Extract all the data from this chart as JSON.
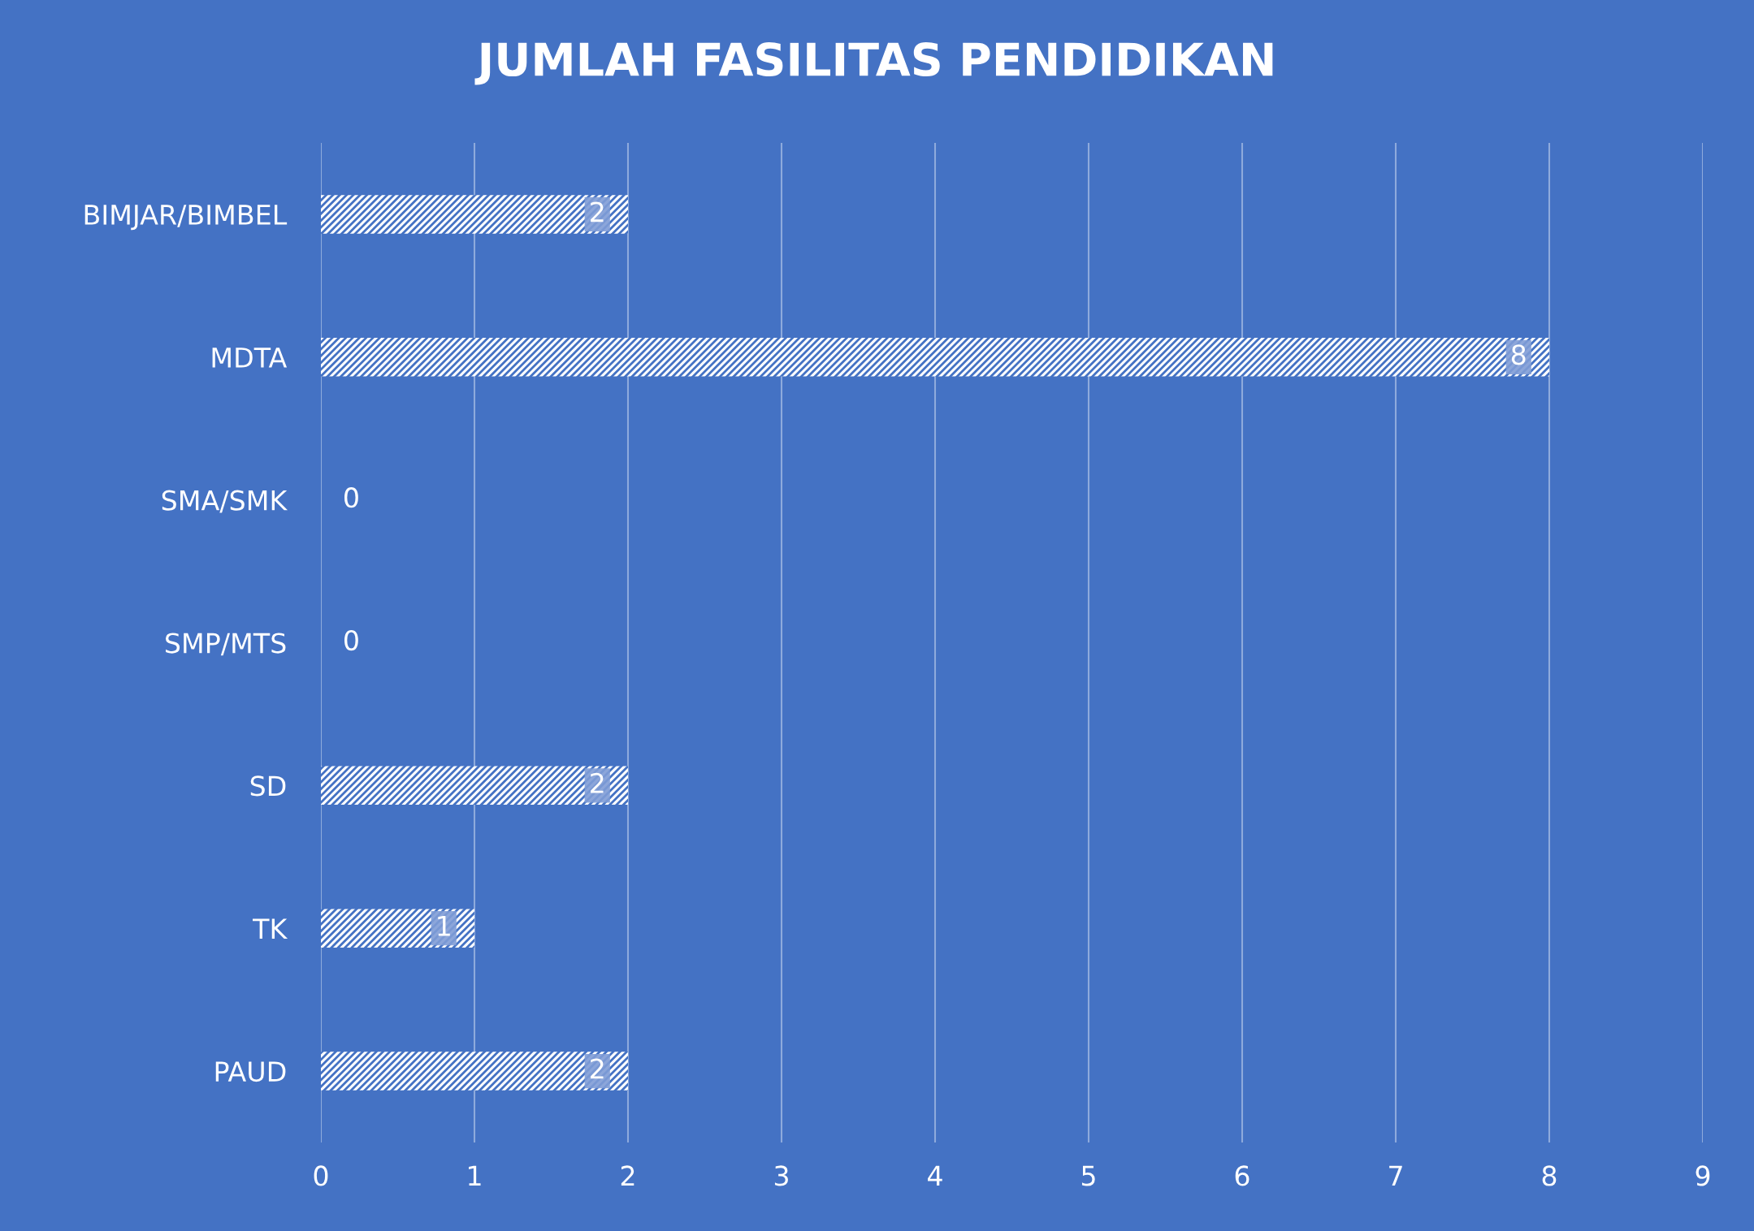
{
  "chart_data": {
    "type": "bar",
    "orientation": "horizontal",
    "title": "JUMLAH FASILITAS PENDIDIKAN",
    "categories": [
      "BIMJAR/BIMBEL",
      "MDTA",
      "SMA/SMK",
      "SMP/MTS",
      "SD",
      "TK",
      "PAUD"
    ],
    "values": [
      2,
      8,
      0,
      0,
      2,
      1,
      2
    ],
    "color": "#ffffff",
    "xlim": [
      0,
      9
    ],
    "xticks": [
      0,
      1,
      2,
      3,
      4,
      5,
      6,
      7,
      8,
      9
    ],
    "grid": "x",
    "data_labels": true
  }
}
